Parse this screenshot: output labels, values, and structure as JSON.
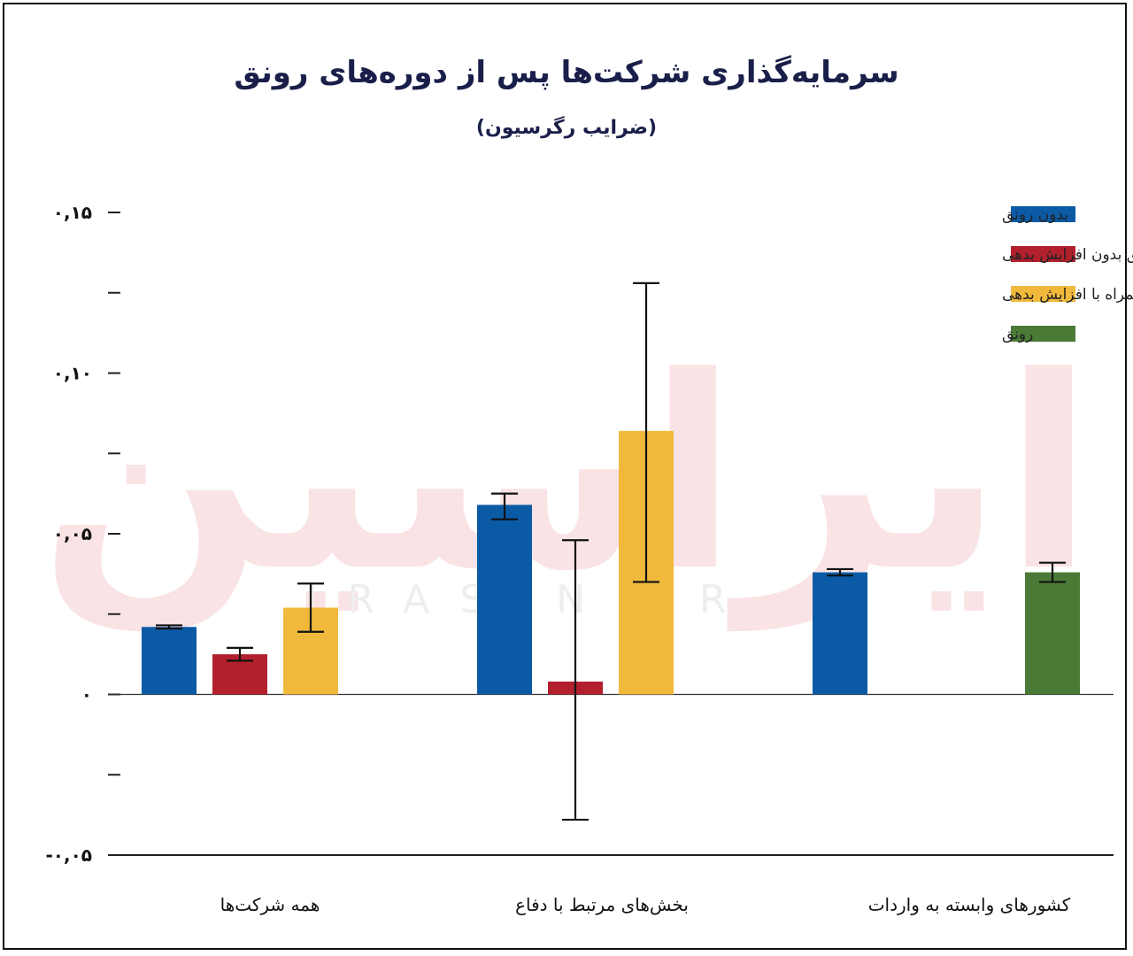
{
  "title": "سرمایه‌گذاری شرکت‌ها پس از دوره‌های رونق",
  "subtitle": "(ضرایب رگرسیون)",
  "watermark": {
    "logo": "ایراسین",
    "site": "IRASIN.IR"
  },
  "colors": {
    "no_boom": "#0b5aa6",
    "boom_no_debt": "#b3202d",
    "boom_with_debt": "#f0b93c",
    "boom": "#4a7a35"
  },
  "chart_data": {
    "type": "bar",
    "ylim": [
      -0.05,
      0.15
    ],
    "y_ticks": [
      {
        "value": 0.15,
        "label": "۰,۱۵"
      },
      {
        "value": 0.125,
        "label": ""
      },
      {
        "value": 0.1,
        "label": "۰,۱۰"
      },
      {
        "value": 0.075,
        "label": ""
      },
      {
        "value": 0.05,
        "label": "۰,۰۵"
      },
      {
        "value": 0.025,
        "label": ""
      },
      {
        "value": 0,
        "label": "۰"
      },
      {
        "value": -0.025,
        "label": ""
      },
      {
        "value": -0.05,
        "label": "-۰,۰۵"
      }
    ],
    "legend_position": "top-right",
    "grid": false,
    "categories": [
      "همه شرکت‌ها",
      "بخش‌های مرتبط با دفاع",
      "کشورهای وابسته به واردات"
    ],
    "series": [
      {
        "name": "بدون رونق",
        "color_key": "no_boom",
        "values": [
          0.021,
          0.059,
          0.038
        ],
        "error_low": [
          0.0205,
          0.0545,
          0.037
        ],
        "error_high": [
          0.0215,
          0.0625,
          0.039
        ]
      },
      {
        "name": "رونق بدون افزایش بدهی",
        "color_key": "boom_no_debt",
        "values": [
          0.0125,
          0.004,
          null
        ],
        "error_low": [
          0.0105,
          -0.039,
          null
        ],
        "error_high": [
          0.0145,
          0.048,
          null
        ]
      },
      {
        "name": "رونق همراه با افزایش بدهی",
        "color_key": "boom_with_debt",
        "values": [
          0.027,
          0.082,
          null
        ],
        "error_low": [
          0.0195,
          0.035,
          null
        ],
        "error_high": [
          0.0345,
          0.128,
          null
        ]
      },
      {
        "name": "رونق",
        "color_key": "boom",
        "values": [
          null,
          null,
          0.038
        ],
        "error_low": [
          null,
          null,
          0.035
        ],
        "error_high": [
          null,
          null,
          0.041
        ]
      }
    ]
  }
}
